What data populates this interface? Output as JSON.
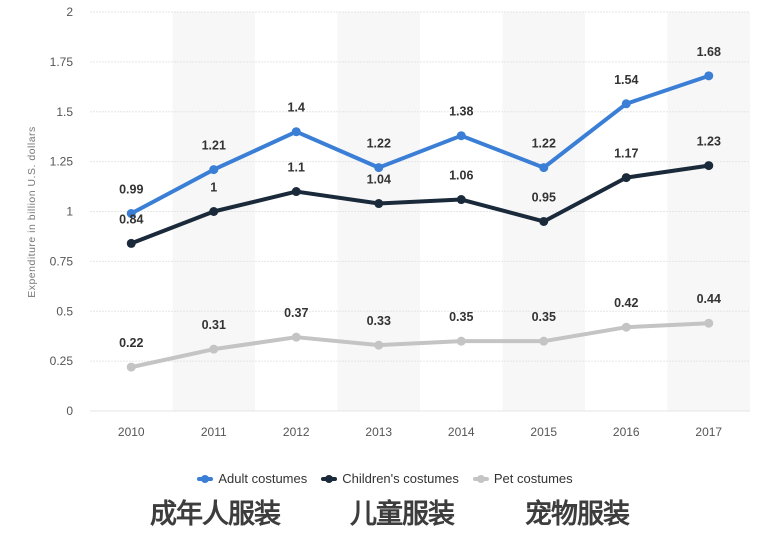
{
  "chart_data": {
    "type": "line",
    "categories": [
      "2010",
      "2011",
      "2012",
      "2013",
      "2014",
      "2015",
      "2016",
      "2017"
    ],
    "series": [
      {
        "name": "Adult costumes",
        "color": "#3a7fd5",
        "values": [
          0.99,
          1.21,
          1.4,
          1.22,
          1.38,
          1.22,
          1.54,
          1.68
        ]
      },
      {
        "name": "Children's costumes",
        "color": "#1a2a3a",
        "values": [
          0.84,
          1,
          1.1,
          1.04,
          1.06,
          0.95,
          1.17,
          1.23
        ]
      },
      {
        "name": "Pet costumes",
        "color": "#c4c4c4",
        "values": [
          0.22,
          0.31,
          0.37,
          0.33,
          0.35,
          0.35,
          0.42,
          0.44
        ]
      }
    ],
    "ylabel": "Expenditure in billion U.S. dollars",
    "xlabel": "",
    "ylim": [
      0,
      2
    ],
    "yticks": [
      "0",
      "0.25",
      "0.5",
      "0.75",
      "1",
      "1.25",
      "1.5",
      "1.75",
      "2"
    ],
    "grid": true,
    "legend_position": "bottom"
  },
  "annotations": {
    "cn_labels": [
      "成年人服装",
      "儿童服装",
      "宠物服装"
    ]
  }
}
